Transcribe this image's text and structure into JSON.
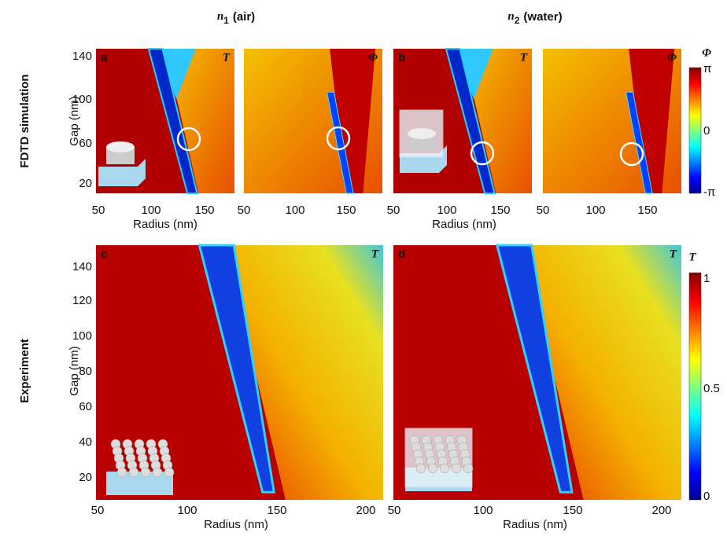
{
  "column_headers": [
    {
      "symbol": "n",
      "subscript": "1",
      "label": "(air)"
    },
    {
      "symbol": "n",
      "subscript": "2",
      "label": "(water)"
    }
  ],
  "rows": [
    {
      "label": "FDTD simulation",
      "y_label": "Gap (nm)",
      "y_ticks": [
        140,
        100,
        60,
        20
      ],
      "x_labels": [
        "Radius (nm)",
        "Radius (nm)"
      ],
      "panels": [
        {
          "letter": "a",
          "quantity": "T",
          "x_ticks": [
            50,
            100,
            150
          ]
        },
        {
          "quantity": "Φ",
          "x_ticks": [
            50,
            100,
            150
          ]
        },
        {
          "letter": "b",
          "quantity": "T",
          "x_ticks": [
            50,
            100,
            150
          ]
        },
        {
          "quantity": "Φ",
          "x_ticks": [
            50,
            100,
            150
          ]
        }
      ],
      "colorbar": {
        "title": "Φ",
        "ticks": [
          "π",
          "0",
          "-π"
        ]
      }
    },
    {
      "label": "Experiment",
      "y_label": "Gap (nm)",
      "y_ticks": [
        140,
        120,
        100,
        80,
        60,
        40,
        20
      ],
      "x_labels": [
        "Radius (nm)",
        "Radius (nm)"
      ],
      "panels": [
        {
          "letter": "c",
          "quantity": "T",
          "x_ticks": [
            50,
            100,
            150,
            200
          ]
        },
        {
          "letter": "d",
          "quantity": "T",
          "x_ticks": [
            50,
            100,
            150,
            200
          ]
        }
      ],
      "colorbar": {
        "title": "T",
        "ticks": [
          1,
          0.5,
          0
        ]
      }
    }
  ]
}
